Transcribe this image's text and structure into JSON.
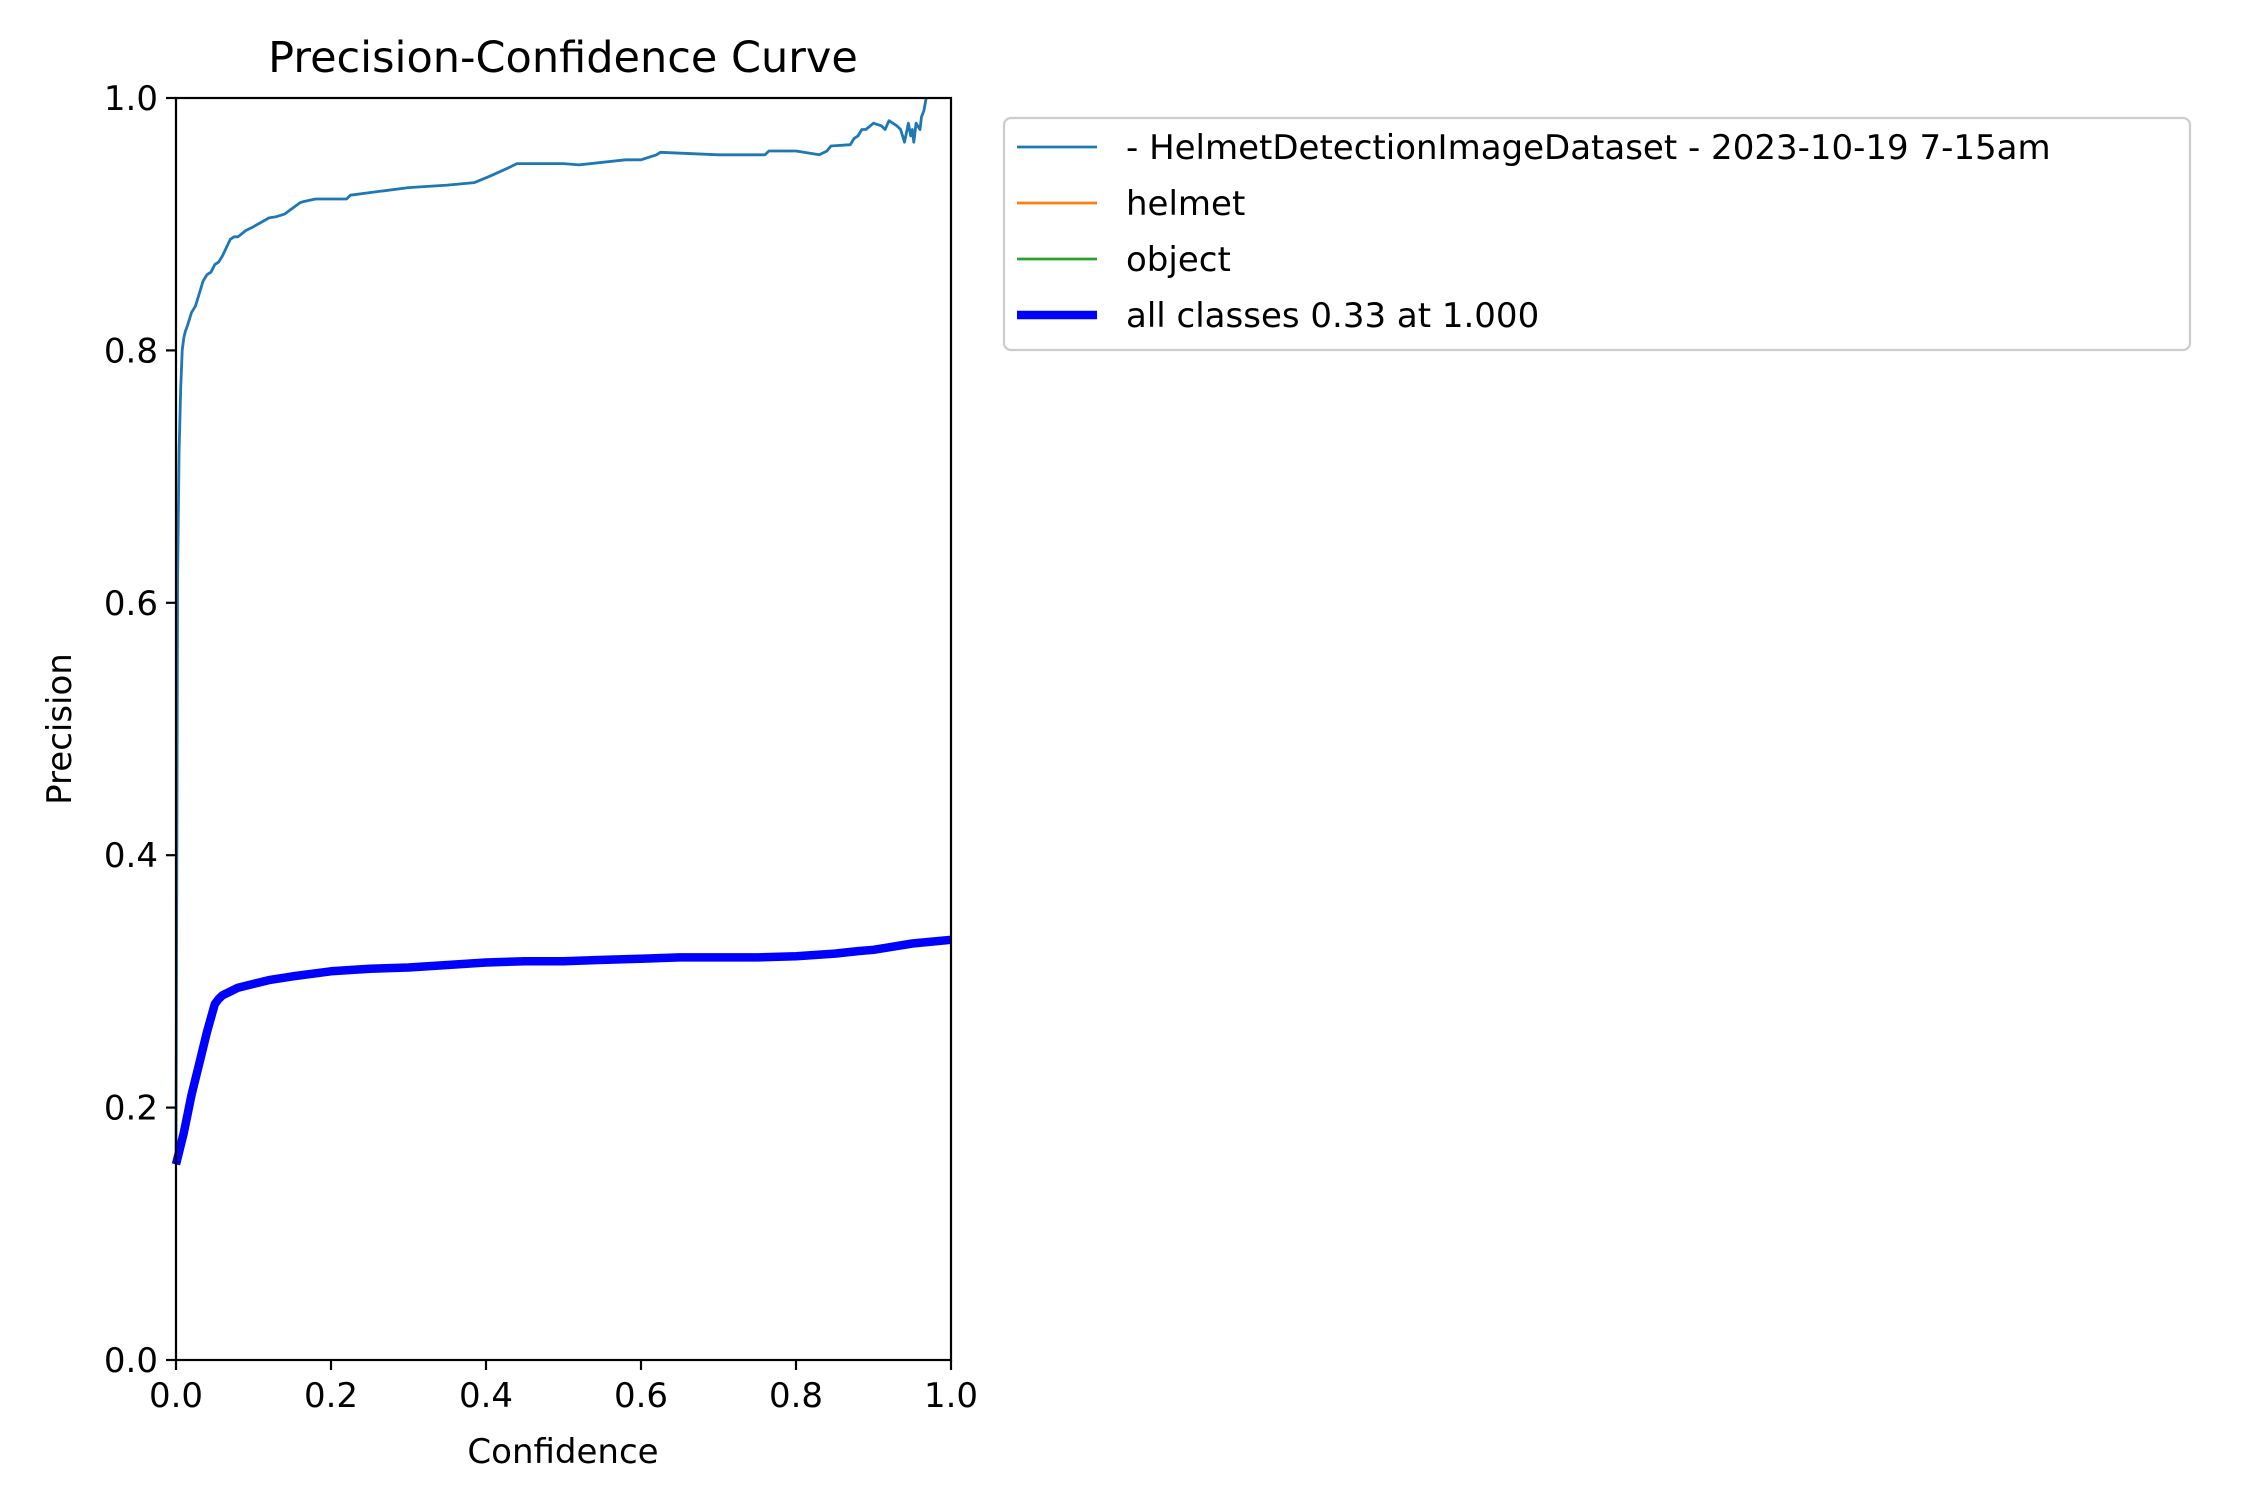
{
  "chart_data": {
    "type": "line",
    "title": "Precision-Confidence Curve",
    "xlabel": "Confidence",
    "ylabel": "Precision",
    "xlim": [
      0,
      1
    ],
    "ylim": [
      0,
      1
    ],
    "grid": false,
    "legend_placement": "outside-upper-right",
    "xticks": [
      "0.0",
      "0.2",
      "0.4",
      "0.6",
      "0.8",
      "1.0"
    ],
    "yticks": [
      "0.0",
      "0.2",
      "0.4",
      "0.6",
      "0.8",
      "1.0"
    ],
    "series": [
      {
        "name": "- HelmetDetectionImageDataset - 2023-10-19 7-15am",
        "color": "#1f77b4",
        "x": [
          0.0,
          0.002,
          0.004,
          0.006,
          0.008,
          0.01,
          0.012,
          0.015,
          0.02,
          0.025,
          0.03,
          0.035,
          0.04,
          0.045,
          0.05,
          0.055,
          0.06,
          0.07,
          0.075,
          0.08,
          0.09,
          0.1,
          0.12,
          0.13,
          0.14,
          0.16,
          0.165,
          0.18,
          0.2,
          0.22,
          0.225,
          0.25,
          0.3,
          0.35,
          0.385,
          0.405,
          0.43,
          0.44,
          0.5,
          0.52,
          0.58,
          0.6,
          0.62,
          0.625,
          0.7,
          0.76,
          0.765,
          0.8,
          0.83,
          0.84,
          0.845,
          0.87,
          0.875,
          0.88,
          0.885,
          0.89,
          0.9,
          0.91,
          0.915,
          0.92,
          0.93,
          0.935,
          0.94,
          0.945,
          0.948,
          0.95,
          0.952,
          0.955,
          0.96,
          0.962,
          0.965,
          0.968
        ],
        "y": [
          0.16,
          0.62,
          0.72,
          0.77,
          0.8,
          0.81,
          0.815,
          0.82,
          0.83,
          0.835,
          0.845,
          0.855,
          0.86,
          0.862,
          0.868,
          0.87,
          0.875,
          0.888,
          0.89,
          0.89,
          0.895,
          0.898,
          0.905,
          0.906,
          0.908,
          0.917,
          0.918,
          0.92,
          0.92,
          0.92,
          0.923,
          0.925,
          0.929,
          0.931,
          0.933,
          0.938,
          0.945,
          0.948,
          0.948,
          0.947,
          0.951,
          0.951,
          0.955,
          0.957,
          0.955,
          0.955,
          0.958,
          0.958,
          0.955,
          0.958,
          0.962,
          0.963,
          0.968,
          0.97,
          0.975,
          0.975,
          0.98,
          0.978,
          0.975,
          0.982,
          0.978,
          0.975,
          0.965,
          0.98,
          0.97,
          0.975,
          0.965,
          0.98,
          0.975,
          0.985,
          0.99,
          1.0
        ],
        "line_width": "thin"
      },
      {
        "name": "helmet",
        "color": "#ff7f0e",
        "x": [],
        "y": [],
        "line_width": "thin"
      },
      {
        "name": "object",
        "color": "#2ca02c",
        "x": [],
        "y": [],
        "line_width": "thin"
      },
      {
        "name": "all classes 0.33 at 1.000",
        "color": "#0000ff",
        "x": [
          0.0,
          0.01,
          0.02,
          0.03,
          0.04,
          0.05,
          0.055,
          0.06,
          0.07,
          0.08,
          0.1,
          0.12,
          0.15,
          0.2,
          0.25,
          0.3,
          0.35,
          0.4,
          0.45,
          0.5,
          0.55,
          0.6,
          0.65,
          0.7,
          0.75,
          0.8,
          0.85,
          0.88,
          0.9,
          0.92,
          0.95,
          1.0
        ],
        "y": [
          0.155,
          0.18,
          0.21,
          0.235,
          0.26,
          0.282,
          0.286,
          0.289,
          0.292,
          0.295,
          0.298,
          0.301,
          0.304,
          0.308,
          0.31,
          0.311,
          0.313,
          0.315,
          0.316,
          0.316,
          0.317,
          0.318,
          0.319,
          0.319,
          0.319,
          0.32,
          0.322,
          0.324,
          0.325,
          0.327,
          0.33,
          0.333
        ],
        "line_width": "thick"
      }
    ]
  }
}
